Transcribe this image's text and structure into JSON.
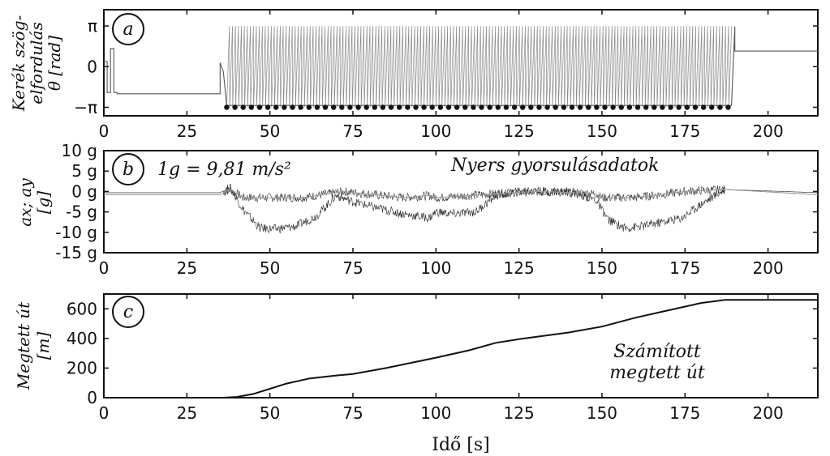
{
  "chart_data": [
    {
      "type": "line",
      "panel_label": "a",
      "ylabel": [
        "Kerék szög-",
        "elfordulás",
        "θ [rad]"
      ],
      "xlim": [
        0,
        215
      ],
      "ylim": [
        -3.8,
        4.4
      ],
      "xticks": [
        "0",
        "25",
        "50",
        "75",
        "100",
        "125",
        "150",
        "175",
        "200"
      ],
      "xtick_values": [
        0,
        25,
        50,
        75,
        100,
        125,
        150,
        175,
        200
      ],
      "yticks": [
        "π",
        "0",
        "−π"
      ],
      "ytick_values": [
        3.1416,
        0,
        -3.1416
      ],
      "series": [
        {
          "x": [
            0,
            1,
            1,
            2,
            2,
            3,
            3,
            4,
            4,
            35,
            35,
            36,
            37,
            189,
            190,
            190,
            215
          ],
          "y": [
            0.4,
            0.4,
            -2.0,
            -2.0,
            1.4,
            1.4,
            -2.0,
            -2.0,
            -2.1,
            -2.1,
            0.3,
            -0.4,
            -3.0,
            -3.0,
            3.1,
            1.2,
            1.2
          ]
        }
      ],
      "sawtooth": {
        "x_start": 37,
        "x_end": 189,
        "y_low": -3.1416,
        "y_high": 3.1416,
        "period": 0.9
      },
      "markers": {
        "x_start": 37,
        "x_end": 188,
        "y": -3.1416,
        "count": 62
      }
    },
    {
      "type": "line",
      "panel_label": "b",
      "ylabel": [
        "ax; ay",
        "[g]"
      ],
      "annotations": [
        "1g = 9,81 m/s²",
        "Nyers gyorsulásadatok"
      ],
      "xlim": [
        0,
        215
      ],
      "ylim": [
        -15,
        10
      ],
      "xticks": [
        "0",
        "25",
        "50",
        "75",
        "100",
        "125",
        "150",
        "175",
        "200"
      ],
      "xtick_values": [
        0,
        25,
        50,
        75,
        100,
        125,
        150,
        175,
        200
      ],
      "yticks": [
        "10 g",
        "5 g",
        "0 g",
        "-5 g",
        "-10 g",
        "-15 g"
      ],
      "ytick_values": [
        10,
        5,
        0,
        -5,
        -10,
        -15
      ],
      "series": [
        {
          "x": [
            0,
            35,
            38,
            42,
            60,
            72,
            90,
            98,
            100,
            110,
            118,
            130,
            148,
            150,
            160,
            175,
            187,
            215
          ],
          "y": [
            -0.8,
            -0.8,
            0.5,
            -1.5,
            -1.5,
            0.0,
            -1.5,
            -1.0,
            -1.5,
            -1.0,
            -0.5,
            0.0,
            -0.5,
            -1.5,
            -1.5,
            0.0,
            0.5,
            -0.8
          ]
        },
        {
          "x": [
            0,
            35,
            38,
            42,
            47,
            52,
            58,
            64,
            70,
            75,
            82,
            90,
            98,
            100,
            105,
            112,
            118,
            125,
            140,
            148,
            152,
            157,
            162,
            168,
            174,
            180,
            187,
            215
          ],
          "y": [
            -0.3,
            -0.3,
            1.0,
            -4.5,
            -9.0,
            -9.2,
            -8.5,
            -6.0,
            -1.0,
            -2.5,
            -4.0,
            -5.5,
            -6.5,
            -5.0,
            -5.5,
            -5.0,
            -1.0,
            0.0,
            0.0,
            -2.0,
            -7.0,
            -9.0,
            -8.5,
            -7.5,
            -6.5,
            -3.0,
            0.5,
            -0.3
          ]
        }
      ],
      "noise_range": [
        36,
        187
      ]
    },
    {
      "type": "line",
      "panel_label": "c",
      "ylabel": [
        "Megtett út",
        "[m]"
      ],
      "annotations": [
        "Számított",
        "megtett út"
      ],
      "xlabel": "Idő [s]",
      "xlim": [
        0,
        215
      ],
      "ylim": [
        0,
        700
      ],
      "xticks": [
        "0",
        "25",
        "50",
        "75",
        "100",
        "125",
        "150",
        "175",
        "200"
      ],
      "xtick_values": [
        0,
        25,
        50,
        75,
        100,
        125,
        150,
        175,
        200
      ],
      "yticks": [
        "600",
        "400",
        "200",
        "0"
      ],
      "ytick_values": [
        600,
        400,
        200,
        0
      ],
      "series": [
        {
          "x": [
            0,
            36,
            40,
            45,
            50,
            55,
            62,
            70,
            75,
            85,
            100,
            110,
            118,
            125,
            140,
            150,
            160,
            170,
            180,
            187,
            215
          ],
          "y": [
            0,
            0,
            5,
            25,
            60,
            95,
            130,
            150,
            160,
            200,
            270,
            320,
            370,
            395,
            440,
            480,
            540,
            590,
            640,
            660,
            660
          ]
        }
      ]
    }
  ]
}
